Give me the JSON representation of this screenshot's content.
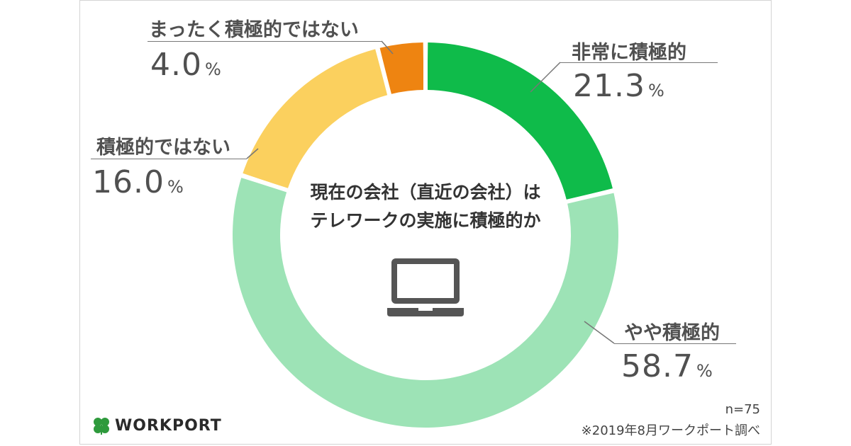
{
  "chart_data": {
    "type": "pie",
    "title": "現在の会社（直近の会社）は",
    "subtitle": "テレワークの実施に積極的か",
    "categories": [
      "非常に積極的",
      "やや積極的",
      "積極的ではない",
      "まったく積極的ではない"
    ],
    "values": [
      21.3,
      58.7,
      16.0,
      4.0
    ],
    "value_labels": [
      "21.3",
      "58.7",
      "16.0",
      "4.0"
    ],
    "unit": "%",
    "colors": [
      "#0fbb4a",
      "#9de3b6",
      "#fbd05e",
      "#ee8411"
    ],
    "legend": "none"
  },
  "labels": {
    "very": {
      "name": "非常に積極的",
      "value": "21.3",
      "unit": "%"
    },
    "somewhat": {
      "name": "やや積極的",
      "value": "58.7",
      "unit": "%"
    },
    "not": {
      "name": "積極的ではない",
      "value": "16.0",
      "unit": "%"
    },
    "not_at_all": {
      "name": "まったく積極的ではない",
      "value": "4.0",
      "unit": "%"
    }
  },
  "center_icon": "laptop-icon",
  "footer": {
    "n": "n=75",
    "source": "※2019年8月ワークポート調べ",
    "logo_text": "WORKPORT",
    "logo_icon": "clover-icon"
  }
}
